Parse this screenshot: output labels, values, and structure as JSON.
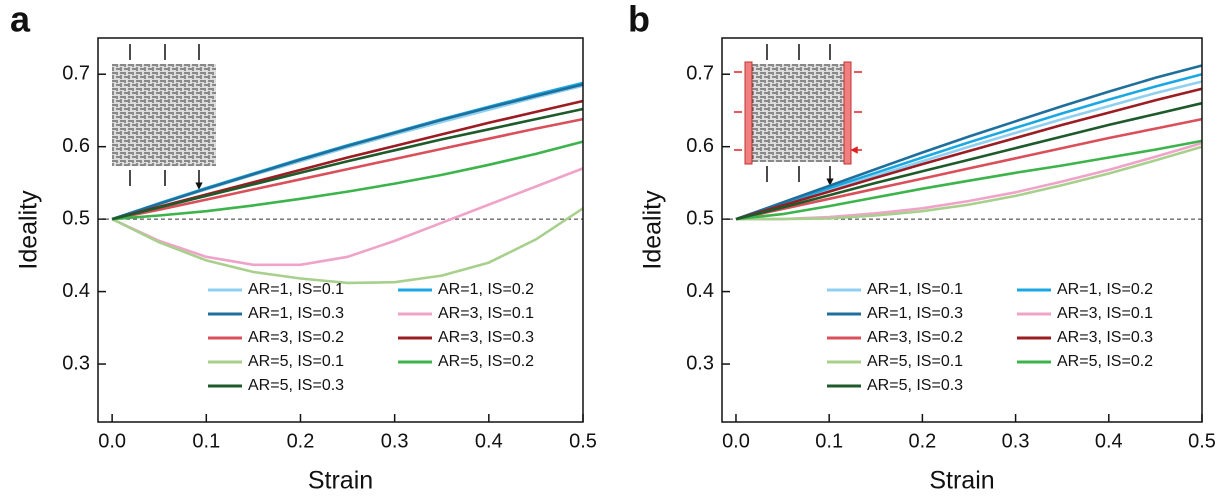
{
  "chart_data": [
    {
      "type": "line",
      "panel_label": "a",
      "xlabel": "Strain",
      "ylabel": "Ideality",
      "x": [
        0,
        0.05,
        0.1,
        0.15,
        0.2,
        0.25,
        0.3,
        0.35,
        0.4,
        0.45,
        0.5
      ],
      "xlim": [
        -0.015,
        0.5
      ],
      "ylim": [
        0.22,
        0.75
      ],
      "xticks": [
        {
          "value": 0,
          "label": "0.0"
        },
        0.1,
        0.2,
        0.3,
        0.4,
        0.5
      ],
      "yticks": [
        0.3,
        0.4,
        0.5,
        0.6,
        0.7
      ],
      "hline": 0.5,
      "legend": "lower right",
      "series": [
        {
          "name": "AR=1, IS=0.1",
          "color": "#8fd0f0",
          "values": [
            0.5,
            0.521,
            0.541,
            0.561,
            0.58,
            0.599,
            0.617,
            0.634,
            0.651,
            0.668,
            0.684
          ]
        },
        {
          "name": "AR=1, IS=0.2",
          "color": "#1aa8e3",
          "values": [
            0.5,
            0.522,
            0.543,
            0.563,
            0.583,
            0.602,
            0.62,
            0.638,
            0.655,
            0.672,
            0.688
          ]
        },
        {
          "name": "AR=1, IS=0.3",
          "color": "#1f6f9c",
          "values": [
            0.5,
            0.521,
            0.542,
            0.562,
            0.582,
            0.601,
            0.619,
            0.637,
            0.654,
            0.67,
            0.686
          ]
        },
        {
          "name": "AR=3, IS=0.1",
          "color": "#f0a3c8",
          "values": [
            0.5,
            0.47,
            0.448,
            0.437,
            0.437,
            0.448,
            0.47,
            0.495,
            0.52,
            0.545,
            0.57
          ]
        },
        {
          "name": "AR=3, IS=0.2",
          "color": "#d9505a",
          "values": [
            0.5,
            0.513,
            0.527,
            0.541,
            0.555,
            0.569,
            0.583,
            0.597,
            0.611,
            0.625,
            0.638
          ]
        },
        {
          "name": "AR=3, IS=0.3",
          "color": "#9b1c22",
          "values": [
            0.5,
            0.517,
            0.534,
            0.551,
            0.568,
            0.585,
            0.601,
            0.617,
            0.633,
            0.648,
            0.663
          ]
        },
        {
          "name": "AR=5, IS=0.1",
          "color": "#a8d08d",
          "values": [
            0.5,
            0.468,
            0.443,
            0.427,
            0.418,
            0.412,
            0.413,
            0.422,
            0.44,
            0.472,
            0.515
          ]
        },
        {
          "name": "AR=5, IS=0.2",
          "color": "#3cb44b",
          "values": [
            0.5,
            0.505,
            0.511,
            0.519,
            0.528,
            0.538,
            0.549,
            0.561,
            0.575,
            0.59,
            0.607
          ]
        },
        {
          "name": "AR=5, IS=0.3",
          "color": "#1e5a2a",
          "values": [
            0.5,
            0.516,
            0.532,
            0.548,
            0.564,
            0.58,
            0.595,
            0.61,
            0.624,
            0.638,
            0.652
          ]
        }
      ]
    },
    {
      "type": "line",
      "panel_label": "b",
      "xlabel": "Strain",
      "ylabel": "Ideality",
      "x": [
        0,
        0.05,
        0.1,
        0.15,
        0.2,
        0.25,
        0.3,
        0.35,
        0.4,
        0.45,
        0.5
      ],
      "xlim": [
        -0.015,
        0.5
      ],
      "ylim": [
        0.22,
        0.75
      ],
      "xticks": [
        {
          "value": 0,
          "label": "0.0"
        },
        0.1,
        0.2,
        0.3,
        0.4,
        0.5
      ],
      "yticks": [
        0.3,
        0.4,
        0.5,
        0.6,
        0.7
      ],
      "hline": 0.5,
      "legend": "lower right",
      "series": [
        {
          "name": "AR=1, IS=0.1",
          "color": "#8fd0f0",
          "values": [
            0.5,
            0.52,
            0.54,
            0.56,
            0.58,
            0.6,
            0.619,
            0.638,
            0.656,
            0.674,
            0.69
          ]
        },
        {
          "name": "AR=1, IS=0.2",
          "color": "#1aa8e3",
          "values": [
            0.5,
            0.521,
            0.543,
            0.564,
            0.585,
            0.606,
            0.626,
            0.646,
            0.665,
            0.683,
            0.7
          ]
        },
        {
          "name": "AR=1, IS=0.3",
          "color": "#1f6f9c",
          "values": [
            0.5,
            0.523,
            0.546,
            0.569,
            0.592,
            0.614,
            0.635,
            0.656,
            0.676,
            0.695,
            0.712
          ]
        },
        {
          "name": "AR=3, IS=0.1",
          "color": "#f0a3c8",
          "values": [
            0.5,
            0.5,
            0.503,
            0.508,
            0.515,
            0.525,
            0.537,
            0.552,
            0.568,
            0.586,
            0.605
          ]
        },
        {
          "name": "AR=3, IS=0.2",
          "color": "#d9505a",
          "values": [
            0.5,
            0.514,
            0.528,
            0.542,
            0.556,
            0.57,
            0.584,
            0.598,
            0.612,
            0.625,
            0.638
          ]
        },
        {
          "name": "AR=3, IS=0.3",
          "color": "#9b1c22",
          "values": [
            0.5,
            0.519,
            0.538,
            0.557,
            0.576,
            0.594,
            0.612,
            0.63,
            0.647,
            0.664,
            0.68
          ]
        },
        {
          "name": "AR=5, IS=0.1",
          "color": "#a8d08d",
          "values": [
            0.5,
            0.5,
            0.501,
            0.505,
            0.511,
            0.52,
            0.532,
            0.547,
            0.563,
            0.581,
            0.6
          ]
        },
        {
          "name": "AR=5, IS=0.2",
          "color": "#3cb44b",
          "values": [
            0.5,
            0.507,
            0.518,
            0.53,
            0.542,
            0.553,
            0.564,
            0.574,
            0.585,
            0.596,
            0.608
          ]
        },
        {
          "name": "AR=5, IS=0.3",
          "color": "#1e5a2a",
          "values": [
            0.5,
            0.516,
            0.533,
            0.55,
            0.566,
            0.582,
            0.598,
            0.614,
            0.63,
            0.645,
            0.66
          ]
        }
      ]
    }
  ]
}
